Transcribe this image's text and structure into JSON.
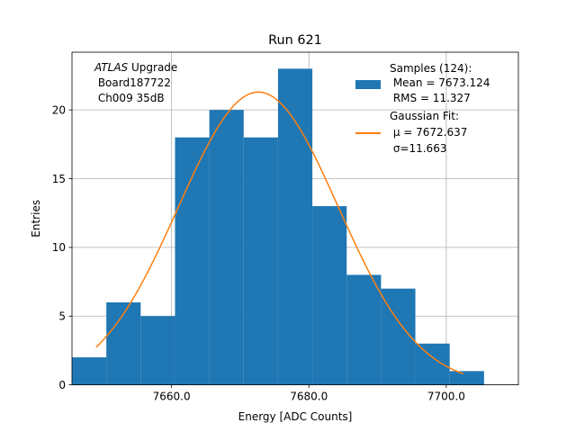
{
  "colors": {
    "bar": "#1f77b4",
    "fit": "#ff7f0e",
    "grid": "#b0b0b0"
  },
  "chart_data": {
    "type": "bar",
    "title": "Run 621",
    "xlabel": "Energy [ADC Counts]",
    "ylabel": "Entries",
    "xlim": [
      7645.5,
      7710.5
    ],
    "ylim": [
      0,
      24.2
    ],
    "grid": true,
    "x_ticks": [
      7660,
      7680,
      7700
    ],
    "x_tick_labels": [
      "7660.0",
      "7680.0",
      "7700.0"
    ],
    "y_ticks": [
      0,
      5,
      10,
      15,
      20
    ],
    "y_tick_labels": [
      "0",
      "5",
      "10",
      "15",
      "20"
    ],
    "bins": [
      {
        "x0": 7645.5,
        "x1": 7650.5,
        "count": 2
      },
      {
        "x0": 7650.5,
        "x1": 7655.5,
        "count": 6
      },
      {
        "x0": 7655.5,
        "x1": 7660.5,
        "count": 5
      },
      {
        "x0": 7660.5,
        "x1": 7665.5,
        "count": 18
      },
      {
        "x0": 7665.5,
        "x1": 7670.5,
        "count": 20
      },
      {
        "x0": 7670.5,
        "x1": 7675.5,
        "count": 18
      },
      {
        "x0": 7675.5,
        "x1": 7680.5,
        "count": 23
      },
      {
        "x0": 7680.5,
        "x1": 7685.5,
        "count": 13
      },
      {
        "x0": 7685.5,
        "x1": 7690.5,
        "count": 8
      },
      {
        "x0": 7690.5,
        "x1": 7695.5,
        "count": 7
      },
      {
        "x0": 7695.5,
        "x1": 7700.5,
        "count": 3
      },
      {
        "x0": 7700.5,
        "x1": 7705.5,
        "count": 1
      }
    ],
    "fit": {
      "mu": 7672.637,
      "sigma": 11.663,
      "amplitude": 21.3,
      "x_from": 7649.0,
      "x_to": 7702.5
    },
    "annotation": {
      "atlas": "ATLAS",
      "upgrade": " Upgrade",
      "board": " Board187722",
      "channel": " Ch009 35dB"
    },
    "legend": {
      "position": "top-right",
      "samples_title": "Samples (124):",
      "samples_mean": " Mean = 7673.124",
      "samples_rms": " RMS = 11.327",
      "fit_title": "Gaussian Fit:",
      "fit_mu": " μ = 7672.637",
      "fit_sigma": " σ=11.663"
    }
  }
}
